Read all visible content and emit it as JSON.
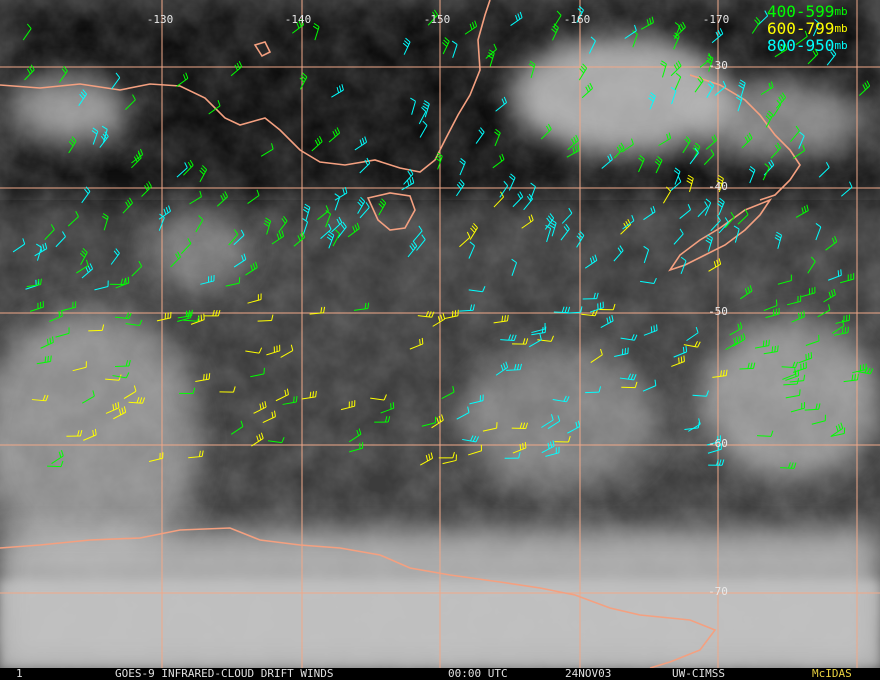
{
  "map": {
    "longitude_labels": [
      "-130",
      "-140",
      "-150",
      "-160",
      "-170"
    ],
    "latitude_labels": [
      "-30",
      "-40",
      "-50",
      "-60",
      "-70"
    ],
    "legend": [
      {
        "label": "400-599",
        "unit": "mb",
        "color": "#00ff00"
      },
      {
        "label": "600-799",
        "unit": "mb",
        "color": "#ffff00"
      },
      {
        "label": "800-950",
        "unit": "mb",
        "color": "#00ffff"
      }
    ],
    "footer": {
      "frame": "1",
      "title": "GOES-9 INFRARED-CLOUD DRIFT WINDS",
      "time": "00:00 UTC",
      "date": "24NOV03",
      "source": "UW-CIMSS",
      "software": "McIDAS"
    }
  }
}
